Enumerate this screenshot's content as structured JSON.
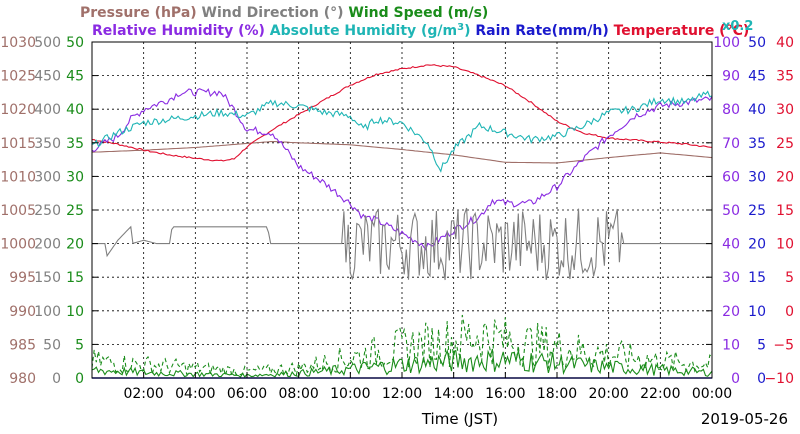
{
  "chart_data": {
    "type": "line",
    "legend_line1": [
      {
        "text": "Pressure (hPa)",
        "color": "#a0706a"
      },
      {
        "text": "Wind Direction (°)",
        "color": "#808080"
      },
      {
        "text": "Wind Speed (m/s)",
        "color": "#1a8c1a"
      }
    ],
    "legend_line2": [
      {
        "text": "Relative Humidity (%)",
        "color": "#8a2be2"
      },
      {
        "text": "Absolute Humidity (g/m",
        "sup": "3",
        "tail": ")",
        "color": "#1fb5b5"
      },
      {
        "text": "Rain Rate(mm/h)",
        "color": "#1a1acc"
      },
      {
        "text": "Temperature (°C)",
        "color": "#e01030"
      }
    ],
    "abs_humidity_scale_note": "x0.2",
    "xlabel": "Time (JST)",
    "date_label": "2019-05-26",
    "x_range": [
      "00:00",
      "24:00"
    ],
    "x_tick_labels": [
      "02:00",
      "04:00",
      "06:00",
      "08:00",
      "10:00",
      "12:00",
      "14:00",
      "16:00",
      "18:00",
      "20:00",
      "22:00",
      "00:00"
    ],
    "grid": true,
    "axes": {
      "pressure": {
        "color": "#a0706a",
        "ylim": [
          980,
          1030
        ],
        "ticks": [
          "980",
          "985",
          "990",
          "995",
          "1000",
          "1005",
          "1010",
          "1015",
          "1020",
          "1025",
          "1030"
        ]
      },
      "wind_direction": {
        "color": "#808080",
        "ylim": [
          0,
          500
        ],
        "ticks": [
          "0",
          "50",
          "100",
          "150",
          "200",
          "250",
          "300",
          "350",
          "400",
          "450",
          "500"
        ]
      },
      "wind_speed": {
        "color": "#1a8c1a",
        "ylim": [
          0,
          50
        ],
        "ticks": [
          "0",
          "5",
          "10",
          "15",
          "20",
          "25",
          "30",
          "35",
          "40",
          "45",
          "50"
        ]
      },
      "relative_humidity": {
        "color": "#8a2be2",
        "ylim": [
          0,
          100
        ],
        "ticks": [
          "0",
          "10",
          "20",
          "30",
          "40",
          "50",
          "60",
          "70",
          "80",
          "90",
          "100"
        ]
      },
      "rain_rate": {
        "color": "#1a1acc",
        "ylim": [
          0,
          50
        ],
        "ticks": [
          "0",
          "5",
          "10",
          "15",
          "20",
          "25",
          "30",
          "35",
          "40",
          "45",
          "50"
        ]
      },
      "temperature": {
        "color": "#e01030",
        "ylim": [
          -10,
          40
        ],
        "ticks": [
          "−10",
          "−5",
          "0",
          "5",
          "10",
          "15",
          "20",
          "25",
          "30",
          "35",
          "40"
        ]
      }
    },
    "series": [
      {
        "key": "pressure",
        "axis": "pressure",
        "color": "#a0706a",
        "dash": false,
        "x": [
          0,
          2,
          4,
          6,
          7,
          8,
          10,
          12,
          14,
          16,
          18,
          20,
          22,
          24
        ],
        "y": [
          1013.6,
          1013.9,
          1014.3,
          1014.9,
          1015.2,
          1015.0,
          1014.7,
          1014.0,
          1013.2,
          1012.1,
          1012.0,
          1012.8,
          1013.5,
          1012.8
        ]
      },
      {
        "key": "temperature",
        "axis": "temperature",
        "color": "#e01030",
        "dash": false,
        "x": [
          0,
          1,
          2,
          3,
          4,
          5,
          5.5,
          6,
          7,
          8,
          9,
          10,
          11,
          12,
          13,
          14,
          15,
          16,
          17,
          18,
          19,
          20,
          21,
          22,
          23,
          24
        ],
        "y": [
          25.5,
          24.8,
          23.9,
          23.2,
          22.7,
          22.3,
          22.6,
          24.4,
          27.0,
          29.2,
          31.4,
          33.6,
          35.2,
          36.0,
          36.6,
          36.3,
          35.0,
          33.5,
          31.0,
          28.2,
          26.5,
          25.7,
          25.4,
          25.1,
          24.8,
          24.3
        ]
      },
      {
        "key": "relative_humidity",
        "axis": "relative_humidity",
        "color": "#8a2be2",
        "dash": false,
        "x": [
          0,
          1,
          1.5,
          2,
          3,
          3.4,
          4,
          5,
          5.5,
          6,
          7,
          8,
          9,
          10,
          10.5,
          11,
          12,
          13,
          14,
          15,
          15.5,
          16,
          17,
          18,
          19,
          20,
          21,
          22,
          23,
          24
        ],
        "y": [
          68,
          72,
          77,
          80,
          83,
          85,
          85,
          85,
          80,
          74,
          73,
          63,
          58,
          52,
          48,
          47,
          43,
          39,
          44,
          48,
          53,
          52,
          52,
          57,
          65,
          72,
          78,
          81,
          82,
          83
        ]
      },
      {
        "key": "absolute_humidity",
        "axis": "relative_humidity",
        "color": "#1fb5b5",
        "dash": false,
        "x": [
          0,
          1,
          2,
          3,
          4,
          5,
          6,
          7,
          8,
          9,
          10,
          10.5,
          11,
          12,
          13,
          13.5,
          14,
          15,
          16,
          17,
          18,
          19,
          20,
          21,
          22,
          23,
          24
        ],
        "y": [
          69,
          73,
          76,
          77,
          78,
          79,
          78,
          82,
          81,
          79,
          78,
          74,
          77,
          76,
          70,
          62,
          68,
          75,
          73,
          71,
          72,
          75,
          79,
          80,
          83,
          82,
          85
        ]
      },
      {
        "key": "wind_direction",
        "axis": "wind_direction",
        "color": "#808080",
        "dash": false,
        "noise": 55,
        "noise_start": 9.7,
        "noise_end": 20.5,
        "x": [
          0,
          0.5,
          0.55,
          1.0,
          1.5,
          1.55,
          2.0,
          2.5,
          3.0,
          3.1,
          6.8,
          6.9,
          9.5,
          12,
          15,
          18,
          20,
          21,
          22,
          23,
          24
        ],
        "y": [
          200,
          200,
          180,
          205,
          225,
          200,
          205,
          200,
          200,
          225,
          225,
          200,
          200,
          200,
          200,
          200,
          200,
          200,
          200,
          200,
          200
        ]
      },
      {
        "key": "wind_speed_max",
        "axis": "wind_speed",
        "color": "#1a8c1a",
        "dash": true,
        "x": [
          0,
          2,
          4,
          6,
          8,
          10,
          12,
          14,
          15,
          16,
          18,
          20,
          22,
          24
        ],
        "y": [
          2.5,
          2.0,
          1.5,
          1.0,
          1.5,
          3.0,
          4.5,
          5.5,
          6.5,
          5.5,
          4.5,
          3.5,
          2.5,
          2.0
        ]
      },
      {
        "key": "wind_speed_avg",
        "axis": "wind_speed",
        "color": "#1a8c1a",
        "dash": false,
        "x": [
          0,
          2,
          4,
          6,
          8,
          10,
          12,
          14,
          16,
          18,
          20,
          22,
          24
        ],
        "y": [
          1.2,
          0.8,
          0.6,
          0.4,
          0.7,
          1.3,
          2.0,
          2.5,
          2.8,
          2.2,
          1.6,
          1.2,
          0.8
        ]
      },
      {
        "key": "rain_rate",
        "axis": "rain_rate",
        "color": "#1a1acc",
        "dash": false,
        "x": [
          0,
          24
        ],
        "y": [
          0,
          0
        ]
      }
    ]
  }
}
